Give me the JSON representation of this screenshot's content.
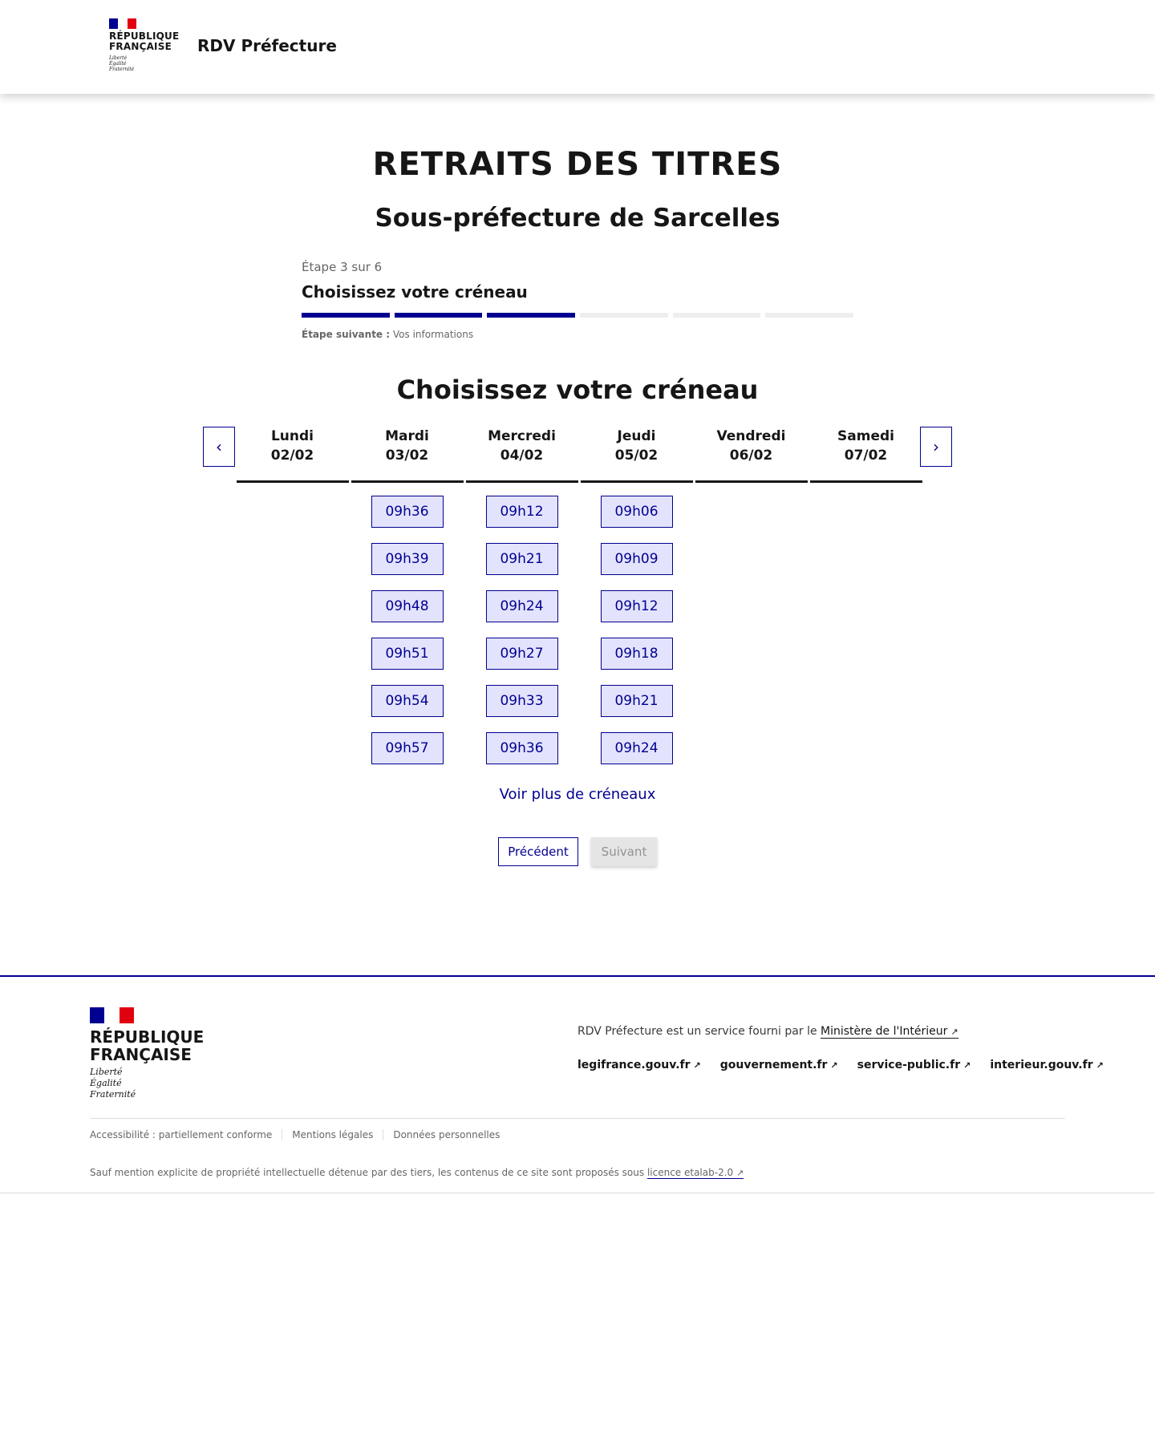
{
  "header": {
    "republic_line1": "RÉPUBLIQUE",
    "republic_line2": "FRANÇAISE",
    "motto": [
      "Liberté",
      "Égalité",
      "Fraternité"
    ],
    "site_title": "RDV Préfecture"
  },
  "page": {
    "title": "RETRAITS DES TITRES",
    "subtitle": "Sous-préfecture de Sarcelles"
  },
  "stepper": {
    "count": "Étape 3 sur 6",
    "current_step": 3,
    "total_steps": 6,
    "title": "Choisissez votre créneau",
    "next_label": "Étape suivante :",
    "next_value": "Vos informations"
  },
  "calendar": {
    "heading": "Choisissez votre créneau",
    "prev_icon": "chevron-left-icon",
    "next_icon": "chevron-right-icon",
    "days": [
      {
        "name": "Lundi",
        "date": "02/02",
        "slots": []
      },
      {
        "name": "Mardi",
        "date": "03/02",
        "slots": [
          "09h36",
          "09h39",
          "09h48",
          "09h51",
          "09h54",
          "09h57"
        ]
      },
      {
        "name": "Mercredi",
        "date": "04/02",
        "slots": [
          "09h12",
          "09h21",
          "09h24",
          "09h27",
          "09h33",
          "09h36"
        ]
      },
      {
        "name": "Jeudi",
        "date": "05/02",
        "slots": [
          "09h06",
          "09h09",
          "09h12",
          "09h18",
          "09h21",
          "09h24"
        ]
      },
      {
        "name": "Vendredi",
        "date": "06/02",
        "slots": []
      },
      {
        "name": "Samedi",
        "date": "07/02",
        "slots": []
      }
    ],
    "more_label": "Voir plus de créneaux"
  },
  "actions": {
    "previous": "Précédent",
    "next": "Suivant"
  },
  "footer": {
    "service_text": "RDV Préfecture est un service fourni par le",
    "service_link": "Ministère de l'Intérieur",
    "links": [
      "legifrance.gouv.fr",
      "gouvernement.fr",
      "service-public.fr",
      "interieur.gouv.fr"
    ],
    "bottom_links": [
      "Accessibilité : partiellement conforme",
      "Mentions légales",
      "Données personnelles"
    ],
    "license_text": "Sauf mention explicite de propriété intellectuelle détenue par des tiers, les contenus de ce site sont proposés sous",
    "license_link": "licence etalab-2.0"
  },
  "colors": {
    "primary": "#000091",
    "slot_bg": "#e3e3fd",
    "flag_red": "#e1000f"
  }
}
